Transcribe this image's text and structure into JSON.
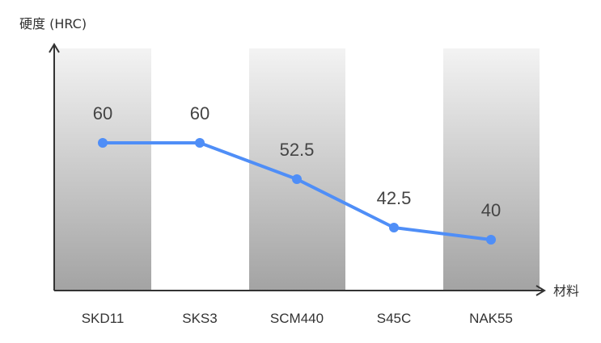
{
  "chart_data": {
    "type": "line",
    "xlabel": "材料",
    "ylabel": "硬度 (HRC)",
    "categories": [
      "SKD11",
      "SKS3",
      "SCM440",
      "S45C",
      "NAK55"
    ],
    "series": [
      {
        "values": [
          60,
          60,
          52.5,
          42.5,
          40
        ]
      }
    ],
    "data_labels": [
      "60",
      "60",
      "52.5",
      "42.5",
      "40"
    ],
    "ylim": [
      29.5,
      79.5
    ],
    "grid": false,
    "legend": "none",
    "background_bands": "alternating gray gradient columns on 1st, 3rd, 5th categories",
    "colors": {
      "line": "#4f8ef7",
      "axis": "#333333",
      "band_top": "#f3f3f3",
      "band_bottom": "#a3a3a3"
    }
  }
}
